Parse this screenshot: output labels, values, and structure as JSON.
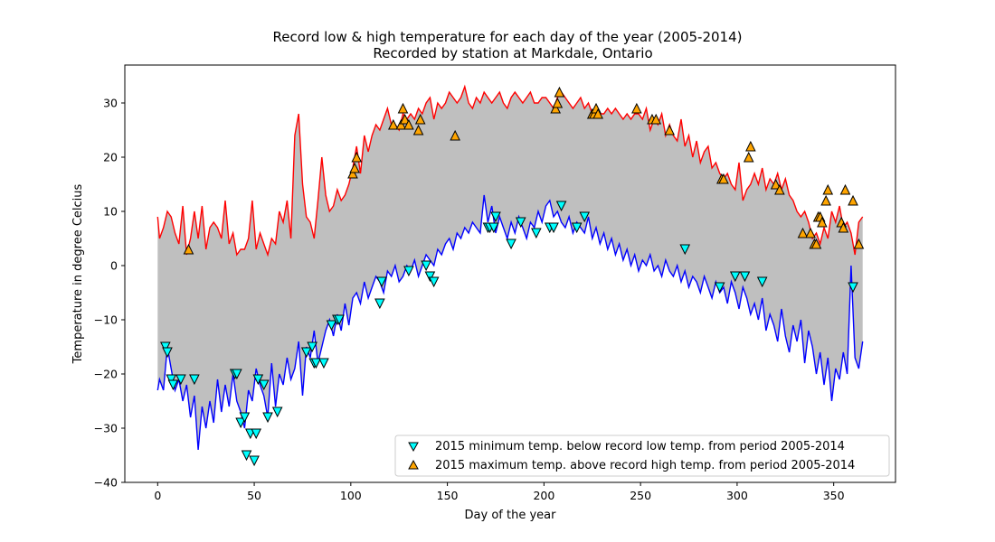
{
  "chart_data": {
    "type": "line",
    "title": "Record low & high temperature for each day of the year (2005-2014)",
    "subtitle": "Recorded by station at Markdale, Ontario",
    "xlabel": "Day of the year",
    "ylabel": "Temperature in degree Celcius",
    "xlim": [
      -17,
      382
    ],
    "ylim": [
      -40,
      37
    ],
    "xticks": [
      0,
      50,
      100,
      150,
      200,
      250,
      300,
      350
    ],
    "yticks": [
      -40,
      -30,
      -20,
      -10,
      0,
      10,
      20,
      30
    ],
    "grid": false,
    "legend_position": "lower-right",
    "colors": {
      "record_high": "#ff0000",
      "record_low": "#0000ff",
      "fill": "#bfbfbf",
      "marker_low": "#00ffff",
      "marker_high": "#ffa500",
      "marker_edge": "#000000"
    },
    "record_high": {
      "x": [
        0,
        1,
        3,
        5,
        7,
        9,
        11,
        13,
        15,
        17,
        19,
        21,
        23,
        25,
        27,
        29,
        31,
        33,
        35,
        37,
        39,
        41,
        43,
        45,
        47,
        49,
        51,
        53,
        55,
        57,
        59,
        61,
        63,
        65,
        67,
        69,
        71,
        73,
        75,
        77,
        79,
        81,
        83,
        85,
        87,
        89,
        91,
        93,
        95,
        97,
        99,
        101,
        103,
        105,
        107,
        109,
        111,
        113,
        115,
        117,
        119,
        121,
        123,
        125,
        127,
        129,
        131,
        133,
        135,
        137,
        139,
        141,
        143,
        145,
        147,
        149,
        151,
        153,
        155,
        157,
        159,
        161,
        163,
        165,
        167,
        169,
        171,
        173,
        175,
        177,
        179,
        181,
        183,
        185,
        187,
        189,
        191,
        193,
        195,
        197,
        199,
        201,
        203,
        205,
        207,
        209,
        211,
        213,
        215,
        217,
        219,
        221,
        223,
        225,
        227,
        229,
        231,
        233,
        235,
        237,
        239,
        241,
        243,
        245,
        247,
        249,
        251,
        253,
        255,
        257,
        259,
        261,
        263,
        265,
        267,
        269,
        271,
        273,
        275,
        277,
        279,
        281,
        283,
        285,
        287,
        289,
        291,
        293,
        295,
        297,
        299,
        301,
        303,
        305,
        307,
        309,
        311,
        313,
        315,
        317,
        319,
        321,
        323,
        325,
        327,
        329,
        331,
        333,
        335,
        337,
        339,
        341,
        343,
        345,
        347,
        349,
        351,
        353,
        355,
        357,
        359,
        361,
        363,
        365
      ],
      "y": [
        9,
        5,
        7,
        10,
        9,
        6,
        4,
        11,
        2,
        5,
        10,
        5,
        11,
        3,
        7,
        8,
        7,
        5,
        12,
        4,
        6,
        2,
        3,
        3,
        5,
        12,
        3,
        6,
        4,
        2,
        5,
        4,
        10,
        8,
        12,
        5,
        24,
        28,
        15,
        9,
        8,
        5,
        12,
        20,
        13,
        10,
        11,
        14,
        12,
        13,
        15,
        18,
        22,
        17,
        24,
        21,
        24,
        26,
        25,
        27,
        29,
        26,
        26,
        25,
        28,
        27,
        28,
        27,
        29,
        28,
        30,
        31,
        27,
        30,
        29,
        30,
        32,
        31,
        30,
        31,
        33,
        30,
        29,
        31,
        30,
        32,
        31,
        30,
        31,
        32,
        30,
        29,
        31,
        32,
        31,
        30,
        31,
        32,
        30,
        30,
        31,
        31,
        30,
        29,
        31,
        32,
        31,
        30,
        29,
        30,
        31,
        29,
        30,
        28,
        29,
        28,
        28,
        29,
        28,
        29,
        28,
        27,
        28,
        27,
        28,
        28,
        27,
        29,
        25,
        27,
        26,
        28,
        24,
        26,
        24,
        23,
        27,
        22,
        24,
        20,
        23,
        19,
        21,
        22,
        18,
        19,
        17,
        16,
        17,
        15,
        14,
        19,
        12,
        14,
        15,
        17,
        15,
        18,
        14,
        16,
        15,
        17,
        14,
        16,
        13,
        12,
        10,
        9,
        10,
        8,
        5,
        6,
        4,
        7,
        5,
        10,
        8,
        11,
        7,
        8,
        6,
        2,
        8,
        9
      ]
    },
    "record_low": {
      "x": [
        0,
        1,
        3,
        5,
        7,
        9,
        11,
        13,
        15,
        17,
        19,
        21,
        23,
        25,
        27,
        29,
        31,
        33,
        35,
        37,
        39,
        41,
        43,
        45,
        47,
        49,
        51,
        53,
        55,
        57,
        59,
        61,
        63,
        65,
        67,
        69,
        71,
        73,
        75,
        77,
        79,
        81,
        83,
        85,
        87,
        89,
        91,
        93,
        95,
        97,
        99,
        101,
        103,
        105,
        107,
        109,
        111,
        113,
        115,
        117,
        119,
        121,
        123,
        125,
        127,
        129,
        131,
        133,
        135,
        137,
        139,
        141,
        143,
        145,
        147,
        149,
        151,
        153,
        155,
        157,
        159,
        161,
        163,
        165,
        167,
        169,
        171,
        173,
        175,
        177,
        179,
        181,
        183,
        185,
        187,
        189,
        191,
        193,
        195,
        197,
        199,
        201,
        203,
        205,
        207,
        209,
        211,
        213,
        215,
        217,
        219,
        221,
        223,
        225,
        227,
        229,
        231,
        233,
        235,
        237,
        239,
        241,
        243,
        245,
        247,
        249,
        251,
        253,
        255,
        257,
        259,
        261,
        263,
        265,
        267,
        269,
        271,
        273,
        275,
        277,
        279,
        281,
        283,
        285,
        287,
        289,
        291,
        293,
        295,
        297,
        299,
        301,
        303,
        305,
        307,
        309,
        311,
        313,
        315,
        317,
        319,
        321,
        323,
        325,
        327,
        329,
        331,
        333,
        335,
        337,
        339,
        341,
        343,
        345,
        347,
        349,
        351,
        353,
        355,
        357,
        359,
        361,
        363,
        365
      ],
      "y": [
        -23,
        -21,
        -23,
        -15,
        -19,
        -23,
        -21,
        -25,
        -22,
        -28,
        -24,
        -34,
        -26,
        -30,
        -25,
        -29,
        -21,
        -27,
        -22,
        -26,
        -20,
        -25,
        -27,
        -30,
        -23,
        -25,
        -19,
        -22,
        -24,
        -28,
        -18,
        -26,
        -20,
        -22,
        -17,
        -21,
        -19,
        -14,
        -24,
        -15,
        -17,
        -12,
        -18,
        -15,
        -12,
        -10,
        -13,
        -9,
        -12,
        -7,
        -11,
        -6,
        -5,
        -7,
        -3,
        -6,
        -4,
        -2,
        -3,
        -5,
        -1,
        -2,
        0,
        -3,
        -2,
        0,
        -1,
        1,
        -2,
        0,
        2,
        1,
        0,
        3,
        2,
        4,
        5,
        3,
        6,
        5,
        7,
        6,
        8,
        7,
        6,
        13,
        8,
        11,
        6,
        9,
        7,
        5,
        8,
        6,
        9,
        7,
        5,
        8,
        7,
        10,
        8,
        11,
        12,
        9,
        10,
        8,
        7,
        9,
        6,
        8,
        7,
        6,
        9,
        5,
        7,
        4,
        6,
        3,
        5,
        2,
        4,
        1,
        3,
        0,
        2,
        -1,
        1,
        0,
        2,
        -1,
        0,
        -2,
        1,
        -1,
        -2,
        0,
        -3,
        -1,
        -4,
        -2,
        -3,
        -5,
        -2,
        -4,
        -6,
        -3,
        -5,
        -4,
        -7,
        -3,
        -5,
        -8,
        -4,
        -6,
        -9,
        -7,
        -10,
        -6,
        -12,
        -9,
        -11,
        -14,
        -8,
        -13,
        -16,
        -11,
        -14,
        -10,
        -18,
        -12,
        -15,
        -20,
        -16,
        -22,
        -17,
        -25,
        -19,
        -21,
        -16,
        -20,
        0,
        -17,
        -19,
        -14
      ]
    },
    "series": [
      {
        "name": "2015 minimum temp. below record low temp. from period 2005-2014",
        "marker": "triangle-down",
        "x": [
          4,
          5,
          7,
          8,
          12,
          19,
          40,
          41,
          43,
          45,
          46,
          48,
          50,
          51,
          52,
          55,
          57,
          62,
          77,
          80,
          81,
          82,
          86,
          90,
          93,
          94,
          115,
          116,
          130,
          139,
          141,
          143,
          171,
          172,
          174,
          175,
          183,
          188,
          196,
          203,
          205,
          209,
          217,
          221,
          273,
          291,
          299,
          304,
          313,
          360
        ],
        "y": [
          -15,
          -16,
          -21,
          -22,
          -21,
          -21,
          -20,
          -20,
          -29,
          -28,
          -35,
          -31,
          -36,
          -31,
          -21,
          -22,
          -28,
          -27,
          -16,
          -15,
          -18,
          -18,
          -18,
          -11,
          -10,
          -10,
          -7,
          -3,
          -1,
          0,
          -2,
          -3,
          7,
          7,
          7,
          9,
          4,
          8,
          6,
          7,
          7,
          11,
          7,
          9,
          3,
          -4,
          -2,
          -2,
          -3,
          -4
        ]
      },
      {
        "name": "2015 maximum temp. above record high temp. from period 2005-2014",
        "marker": "triangle-up",
        "x": [
          16,
          101,
          102,
          103,
          122,
          126,
          127,
          128,
          130,
          135,
          136,
          154,
          206,
          207,
          208,
          225,
          226,
          227,
          228,
          248,
          256,
          258,
          265,
          292,
          293,
          306,
          307,
          320,
          322,
          334,
          338,
          340,
          341,
          342,
          343,
          344,
          346,
          347,
          354,
          355,
          356,
          360,
          363
        ],
        "y": [
          3,
          17,
          18,
          20,
          26,
          26,
          29,
          27,
          26,
          25,
          27,
          24,
          29,
          30,
          32,
          28,
          28,
          29,
          28,
          29,
          27,
          27,
          25,
          16,
          16,
          20,
          22,
          15,
          14,
          6,
          6,
          4,
          4,
          9,
          9,
          8,
          12,
          14,
          8,
          7,
          14,
          12,
          4
        ]
      }
    ]
  }
}
